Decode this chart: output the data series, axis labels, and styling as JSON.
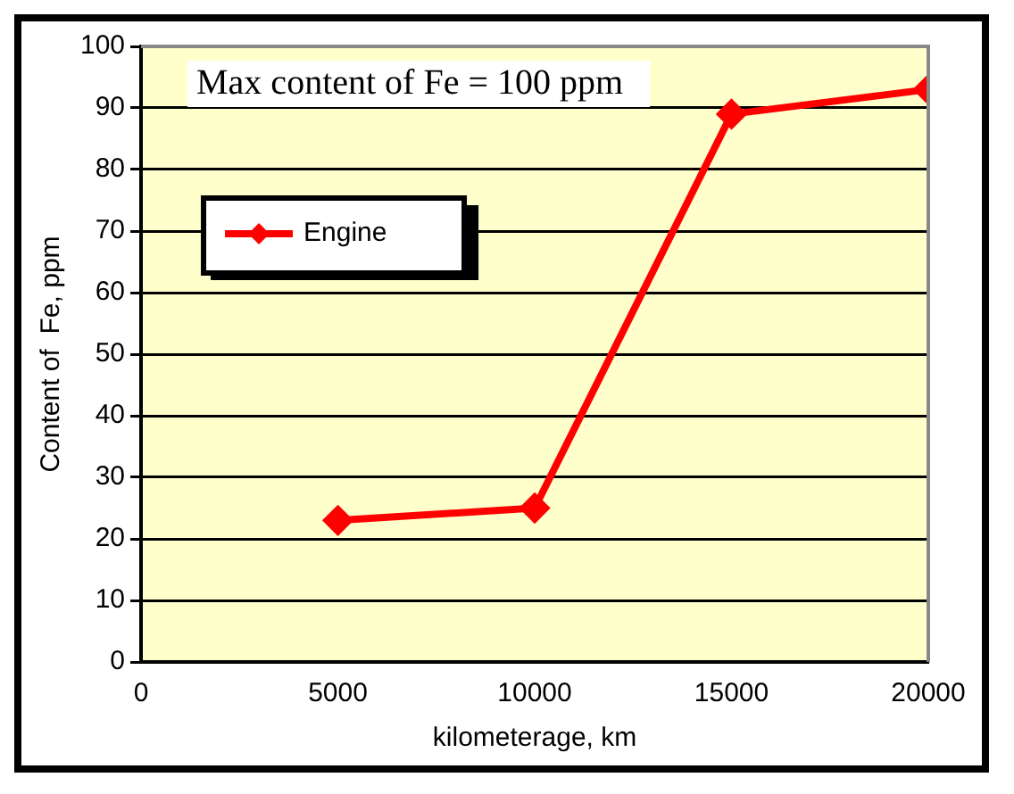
{
  "chart_data": {
    "type": "line",
    "annotations": [
      "Max content of Fe = 100 ppm"
    ],
    "xlabel": "kilometerage, km",
    "ylabel": "Content of  Fe, ppm",
    "x": [
      5000,
      10000,
      15000,
      20000
    ],
    "series": [
      {
        "name": "Engine",
        "color": "#ff0000",
        "values": [
          23,
          25,
          89,
          93
        ]
      }
    ],
    "xlim": [
      0,
      20000
    ],
    "xticks": [
      0,
      5000,
      10000,
      15000,
      20000
    ],
    "ylim": [
      0,
      100
    ],
    "yticks": [
      0,
      10,
      20,
      30,
      40,
      50,
      60,
      70,
      80,
      90,
      100
    ],
    "grid": "y",
    "legend": "top left",
    "marker": "diamond",
    "line_style": "solid"
  }
}
